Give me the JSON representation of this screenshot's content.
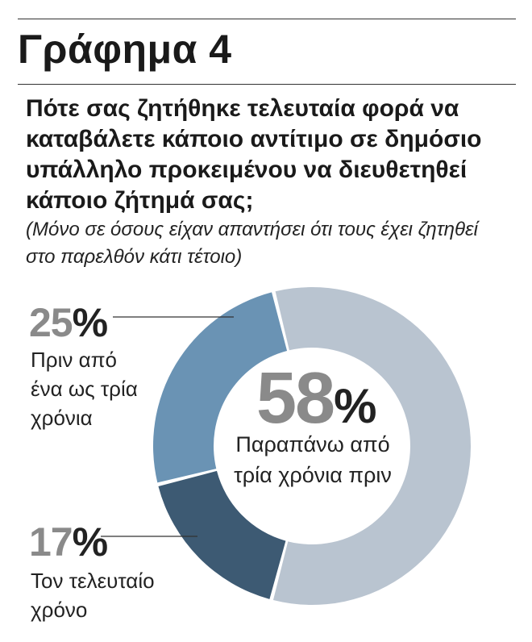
{
  "title": "Γράφημα 4",
  "question": "Πότε σας ζητήθηκε τελευταία φορά να καταβάλετε κάποιο αντίτιμο σε δημόσιο υπάλληλο προκειμένου να διευθετηθεί κάποιο ζήτημά σας;",
  "note": "(Μόνο σε όσους είχαν απαντήσει ότι τους έχει ζητηθεί στο παρελθόν κάτι τέτοιο)",
  "chart_data": {
    "type": "pie",
    "style": "donut",
    "categories": [
      "Παραπάνω από τρία χρόνια πριν",
      "Τον τελευταίο χρόνο",
      "Πριν από ένα ως τρία χρόνια"
    ],
    "values": [
      58,
      17,
      25
    ],
    "unit": "%",
    "colors": [
      "#b9c4d0",
      "#3d5a73",
      "#6a93b4"
    ],
    "slices": [
      {
        "value_text": "58",
        "pct_sign": "%",
        "label_text": "Παραπάνω από τρία χρόνια πριν"
      },
      {
        "value_text": "17",
        "pct_sign": "%",
        "label_text": "Τον τελευταίο χρόνο"
      },
      {
        "value_text": "25",
        "pct_sign": "%",
        "label_text": "Πριν από ένα ως τρία χρόνια"
      }
    ]
  }
}
